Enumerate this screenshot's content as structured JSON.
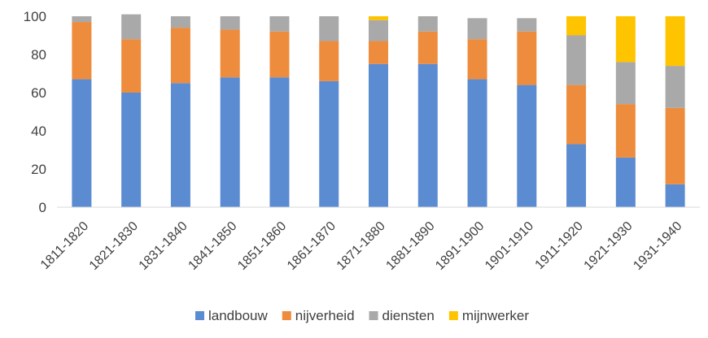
{
  "chart_data": {
    "type": "bar",
    "stacked": true,
    "categories": [
      "1811-1820",
      "1821-1830",
      "1831-1840",
      "1841-1850",
      "1851-1860",
      "1861-1870",
      "1871-1880",
      "1881-1890",
      "1891-1900",
      "1901-1910",
      "1911-1920",
      "1921-1930",
      "1931-1940"
    ],
    "series": [
      {
        "name": "landbouw",
        "color": "#5B8BD1",
        "values": [
          67,
          60,
          65,
          68,
          68,
          66,
          75,
          75,
          67,
          64,
          33,
          26,
          12
        ]
      },
      {
        "name": "nijverheid",
        "color": "#EE8C3D",
        "values": [
          30,
          28,
          29,
          25,
          24,
          21,
          12,
          17,
          21,
          28,
          31,
          28,
          40
        ]
      },
      {
        "name": "diensten",
        "color": "#A9A9A9",
        "values": [
          3,
          13,
          6,
          7,
          8,
          13,
          11,
          8,
          11,
          7,
          26,
          22,
          22
        ]
      },
      {
        "name": "mijnwerker",
        "color": "#FFC400",
        "values": [
          0,
          0,
          0,
          0,
          0,
          0,
          2,
          0,
          0,
          0,
          10,
          24,
          26
        ]
      }
    ],
    "ylim": [
      0,
      100
    ],
    "yticks": [
      "0",
      "20",
      "40",
      "60",
      "80",
      "100"
    ],
    "grid": false,
    "legend": "bottom"
  }
}
